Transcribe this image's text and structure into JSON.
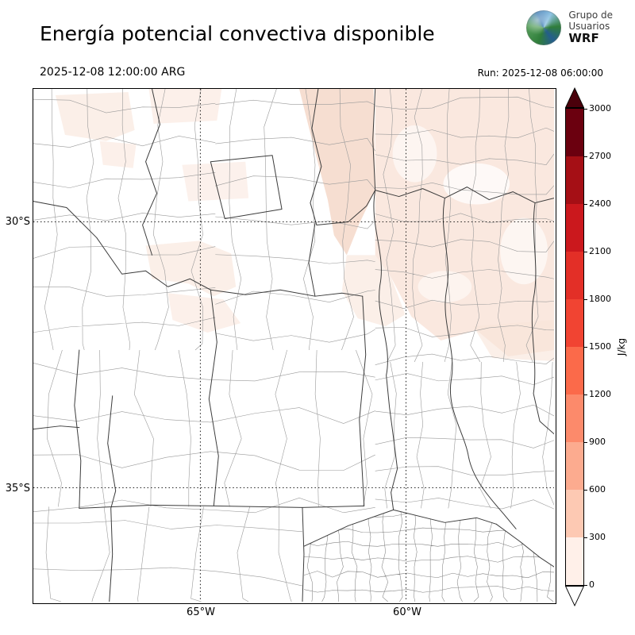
{
  "header": {
    "title": "Energía potencial convectiva disponible",
    "logo": {
      "line1": "Grupo de",
      "line2": "Usuarios",
      "line3": "WRF"
    }
  },
  "times": {
    "valid": "2025-12-08 12:00:00 ARG",
    "run": "Run: 2025-12-08 06:00:00"
  },
  "map": {
    "lat_ticks": [
      "30°S",
      "35°S"
    ],
    "lon_ticks": [
      "65°W",
      "60°W"
    ],
    "shade_colors": {
      "light": "#f9e4d9",
      "mid": "#f3d3c2"
    }
  },
  "colorbar": {
    "unit": "J/kg",
    "ticks_top_to_bottom": [
      "3000",
      "2700",
      "2400",
      "2100",
      "1800",
      "1500",
      "1200",
      "900",
      "600",
      "300",
      "0"
    ],
    "segment_colors_top_to_bottom": [
      "#6b000f",
      "#a50f15",
      "#cb181d",
      "#e32f27",
      "#f14432",
      "#fb6a4a",
      "#fc8a6b",
      "#fcab8f",
      "#fdc9b3",
      "#fff0e9"
    ],
    "over_color": "#4a000b",
    "under_color": "#ffffff"
  },
  "chart_data": {
    "type": "heatmap",
    "title": "Energía potencial convectiva disponible",
    "valid_time": "2025-12-08 12:00:00 ARG",
    "run_time": "Run: 2025-12-08 06:00:00",
    "unit": "J/kg",
    "colorbar_ticks": [
      0,
      300,
      600,
      900,
      1200,
      1500,
      1800,
      2100,
      2400,
      2700,
      3000
    ],
    "colorbar_range": [
      0,
      3000
    ],
    "colorbar_extend": "both",
    "x_tick_labels": [
      "65°W",
      "60°W"
    ],
    "y_tick_labels": [
      "30°S",
      "35°S"
    ],
    "values_summary": "CAPE mostly near 0 over the domain; pale patches up to ~300 J/kg across the northern half and northeast"
  }
}
